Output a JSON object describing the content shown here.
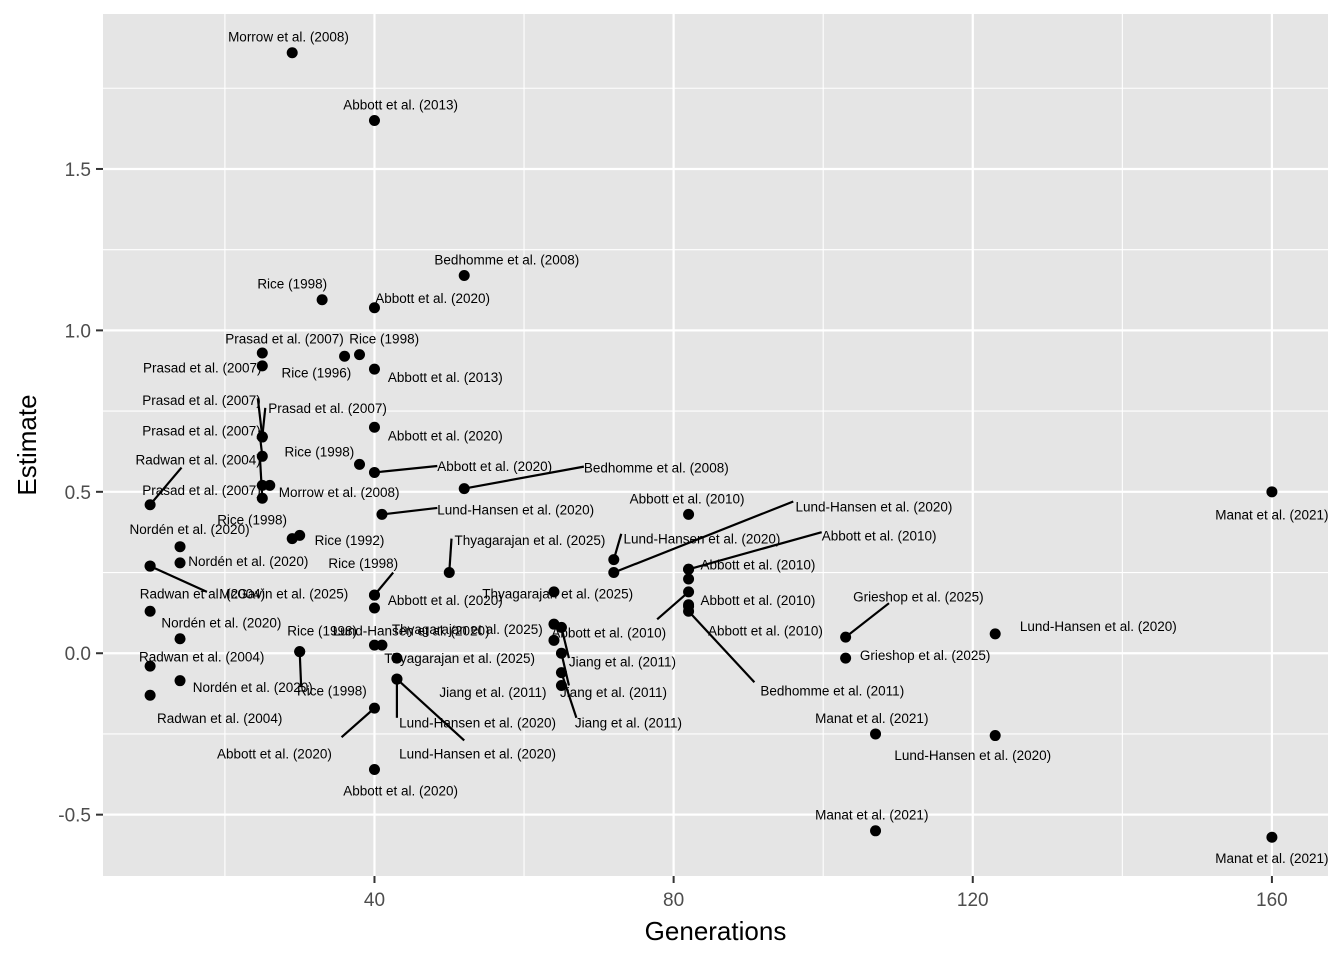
{
  "chart_data": {
    "type": "scatter",
    "title": "",
    "xlabel": "Generations",
    "ylabel": "Estimate",
    "xlim": [
      3.7,
      167.5
    ],
    "ylim": [
      -0.69,
      1.98
    ],
    "x_ticks": [
      40,
      80,
      120,
      160
    ],
    "x_tick_labels": [
      "40",
      "80",
      "120",
      "160"
    ],
    "y_ticks": [
      -0.5,
      0.0,
      0.5,
      1.0,
      1.5
    ],
    "y_tick_labels": [
      "-0.5",
      "0.0",
      "0.5",
      "1.0",
      "1.5"
    ],
    "colors": {
      "panel": "#e5e5e5",
      "grid": "#ffffff",
      "point": "#000000",
      "tick_text": "#4d4d4d"
    },
    "points": [
      {
        "x": 29,
        "y": 1.86,
        "label": "Morrow et al. (2008)",
        "lx": 28.5,
        "ly": 1.91,
        "anchor": "middle",
        "line": false
      },
      {
        "x": 40,
        "y": 1.65,
        "label": "Abbott et al. (2013)",
        "lx": 43.5,
        "ly": 1.7,
        "anchor": "middle",
        "line": false
      },
      {
        "x": 52,
        "y": 1.17,
        "label": "Bedhomme et al. (2008)",
        "lx": 57.7,
        "ly": 1.22,
        "anchor": "middle",
        "line": false
      },
      {
        "x": 33,
        "y": 1.095,
        "label": "Rice (1998)",
        "lx": 29.0,
        "ly": 1.145,
        "anchor": "middle",
        "line": false
      },
      {
        "x": 40,
        "y": 1.07,
        "label": "Abbott et al. (2020)",
        "lx": 40.1,
        "ly": 1.1,
        "anchor": "start",
        "line": false
      },
      {
        "x": 25,
        "y": 0.93,
        "label": "Prasad et al. (2007)",
        "lx": 35.9,
        "ly": 0.975,
        "anchor": "end",
        "line": false
      },
      {
        "x": 36,
        "y": 0.92,
        "label": "Rice (1996)",
        "lx": 36.9,
        "ly": 0.87,
        "anchor": "end",
        "line": false
      },
      {
        "x": 38,
        "y": 0.925,
        "label": "Rice (1998)",
        "lx": 41.3,
        "ly": 0.975,
        "anchor": "middle",
        "line": false
      },
      {
        "x": 40,
        "y": 0.88,
        "label": "Abbott et al. (2013)",
        "lx": 41.8,
        "ly": 0.855,
        "anchor": "start",
        "line": false
      },
      {
        "x": 25,
        "y": 0.89,
        "label": "Prasad et al. (2007)",
        "lx": 24.9,
        "ly": 0.885,
        "anchor": "end",
        "line": false
      },
      {
        "x": 25,
        "y": 0.67,
        "label": "Prasad et al. (2007)",
        "lx": 24.8,
        "ly": 0.785,
        "anchor": "end",
        "line": true,
        "ex": 24.4,
        "ey": 0.79
      },
      {
        "x": 25,
        "y": 0.67,
        "label": "Prasad et al. (2007)",
        "lx": 25.8,
        "ly": 0.76,
        "anchor": "start",
        "line": true,
        "ex": 25.4,
        "ey": 0.76
      },
      {
        "x": 25,
        "y": 0.61,
        "label": "Prasad et al. (2007)",
        "lx": 24.8,
        "ly": 0.69,
        "anchor": "end",
        "line": true,
        "ex": 24.6,
        "ey": 0.69
      },
      {
        "x": 40,
        "y": 0.7,
        "label": "Abbott et al. (2020)",
        "lx": 41.8,
        "ly": 0.675,
        "anchor": "start",
        "line": false
      },
      {
        "x": 38,
        "y": 0.585,
        "label": "Rice (1998)",
        "lx": 37.3,
        "ly": 0.625,
        "anchor": "end",
        "line": false
      },
      {
        "x": 40,
        "y": 0.56,
        "label": "Abbott et al. (2020)",
        "lx": 48.4,
        "ly": 0.58,
        "anchor": "start",
        "line": true,
        "ex": 48.4,
        "ey": 0.58
      },
      {
        "x": 52,
        "y": 0.51,
        "label": "Bedhomme et al. (2008)",
        "lx": 68.0,
        "ly": 0.575,
        "anchor": "start",
        "line": true,
        "ex": 68.0,
        "ey": 0.578
      },
      {
        "x": 26,
        "y": 0.52,
        "label": "Morrow et al. (2008)",
        "lx": 27.2,
        "ly": 0.5,
        "anchor": "start",
        "line": false
      },
      {
        "x": 25,
        "y": 0.52,
        "label": "Prasad et al. (2007)",
        "lx": 24.8,
        "ly": 0.505,
        "anchor": "end",
        "line": false
      },
      {
        "x": 25,
        "y": 0.48,
        "label": "Radwan et al. (2004)",
        "lx": 24.8,
        "ly": 0.6,
        "anchor": "end",
        "line": true,
        "ex": 24.7,
        "ey": 0.6
      },
      {
        "x": 10,
        "y": 0.46,
        "label": "Radwan et al. (2004)",
        "lx": 24.8,
        "ly": 0.6,
        "anchor": "none",
        "line": true,
        "ex": 14.2,
        "ey": 0.575
      },
      {
        "x": 41,
        "y": 0.43,
        "label": "Lund-Hansen et al. (2020)",
        "lx": 48.4,
        "ly": 0.445,
        "anchor": "start",
        "line": true,
        "ex": 48.4,
        "ey": 0.45
      },
      {
        "x": 82,
        "y": 0.43,
        "label": "Abbott et al. (2010)",
        "lx": 81.8,
        "ly": 0.48,
        "anchor": "middle",
        "line": false
      },
      {
        "x": 160,
        "y": 0.5,
        "label": "Manat et al. (2021)",
        "lx": 160.0,
        "ly": 0.43,
        "anchor": "middle",
        "line": false
      },
      {
        "x": 30,
        "y": 0.365,
        "label": "Rice (1992)",
        "lx": 32.0,
        "ly": 0.35,
        "anchor": "start",
        "line": false
      },
      {
        "x": 29,
        "y": 0.355,
        "label": "Rice (1998)",
        "lx": 28.3,
        "ly": 0.415,
        "anchor": "end",
        "line": false
      },
      {
        "x": 14,
        "y": 0.33,
        "label": "Nordén et al. (2020)",
        "lx": 23.3,
        "ly": 0.385,
        "anchor": "end",
        "line": false
      },
      {
        "x": 14,
        "y": 0.28,
        "label": "Nordén et al. (2020)",
        "lx": 15.1,
        "ly": 0.285,
        "anchor": "start",
        "line": false
      },
      {
        "x": 10,
        "y": 0.27,
        "label": "Radwan et al. (2004)",
        "lx": 17.0,
        "ly": 0.185,
        "anchor": "middle",
        "line": true,
        "ex": 17.6,
        "ey": 0.19
      },
      {
        "x": 10,
        "y": 0.27,
        "label": "McGavin et al. (2025)",
        "lx": 36.5,
        "ly": 0.185,
        "anchor": "end",
        "line": false
      },
      {
        "x": 50,
        "y": 0.25,
        "label": "Thyagarajan et al. (2025)",
        "lx": 50.7,
        "ly": 0.35,
        "anchor": "start",
        "line": true,
        "ex": 50.3,
        "ey": 0.355
      },
      {
        "x": 72,
        "y": 0.29,
        "label": "Lund-Hansen et al. (2020)",
        "lx": 73.3,
        "ly": 0.355,
        "anchor": "start",
        "line": true,
        "ex": 73.0,
        "ey": 0.37
      },
      {
        "x": 72,
        "y": 0.25,
        "label": "Lund-Hansen et al. (2020)",
        "lx": 96.3,
        "ly": 0.455,
        "anchor": "start",
        "line": true,
        "ex": 96.0,
        "ey": 0.47
      },
      {
        "x": 82,
        "y": 0.26,
        "label": "Abbott et al. (2010)",
        "lx": 99.8,
        "ly": 0.365,
        "anchor": "start",
        "line": true,
        "ex": 99.8,
        "ey": 0.375
      },
      {
        "x": 82,
        "y": 0.26,
        "label": "Abbott et al. (2010)",
        "lx": 83.6,
        "ly": 0.275,
        "anchor": "start",
        "line": false
      },
      {
        "x": 82,
        "y": 0.23,
        "label": "Abbott et al. (2010)",
        "lx": 83.6,
        "ly": 0.165,
        "anchor": "start",
        "line": false
      },
      {
        "x": 82,
        "y": 0.19,
        "label": "Abbott et al. (2010)",
        "lx": 79.0,
        "ly": 0.065,
        "anchor": "end",
        "line": true,
        "ex": 77.8,
        "ey": 0.105
      },
      {
        "x": 82,
        "y": 0.15,
        "label": "Abbott et al. (2010)",
        "lx": 84.6,
        "ly": 0.07,
        "anchor": "start",
        "line": false
      },
      {
        "x": 82,
        "y": 0.13,
        "label": "Bedhomme et al. (2011)",
        "lx": 91.6,
        "ly": -0.115,
        "anchor": "start",
        "line": true,
        "ex": 90.8,
        "ey": -0.09
      },
      {
        "x": 82,
        "y": 0.145,
        "label": "Abbott et al. (2010)",
        "lx": 82,
        "ly": 0.145,
        "anchor": "none",
        "line": false
      },
      {
        "x": 40,
        "y": 0.18,
        "label": "Rice (1998)",
        "lx": 38.5,
        "ly": 0.28,
        "anchor": "middle",
        "line": true,
        "ex": 42.5,
        "ey": 0.25
      },
      {
        "x": 40,
        "y": 0.18,
        "label": "Abbott et al. (2020)",
        "lx": 41.8,
        "ly": 0.165,
        "anchor": "start",
        "line": false
      },
      {
        "x": 40,
        "y": 0.14,
        "label": "McGavin et al. (2025)",
        "lx": 40,
        "ly": 0.14,
        "anchor": "none",
        "line": false
      },
      {
        "x": 64,
        "y": 0.19,
        "label": "Thyagarajan et al. (2025)",
        "lx": 64.5,
        "ly": 0.185,
        "anchor": "middle",
        "line": false
      },
      {
        "x": 103,
        "y": 0.05,
        "label": "Grieshop et al. (2025)",
        "lx": 104.0,
        "ly": 0.175,
        "anchor": "start",
        "line": true,
        "ex": 108.8,
        "ey": 0.155
      },
      {
        "x": 103,
        "y": -0.015,
        "label": "Grieshop et al. (2025)",
        "lx": 104.9,
        "ly": -0.005,
        "anchor": "start",
        "line": false
      },
      {
        "x": 123,
        "y": 0.06,
        "label": "Lund-Hansen et al. (2020)",
        "lx": 126.3,
        "ly": 0.085,
        "anchor": "start",
        "line": false
      },
      {
        "x": 10,
        "y": 0.13,
        "label": "Nordén et al. (2020)",
        "lx": 11.5,
        "ly": 0.095,
        "anchor": "start",
        "line": false
      },
      {
        "x": 14,
        "y": 0.045,
        "label": "Radwan et al. (2004)",
        "lx": 16.9,
        "ly": -0.01,
        "anchor": "middle",
        "line": false
      },
      {
        "x": 10,
        "y": -0.04,
        "label": "Radwan et al. (2004)",
        "lx": 10,
        "ly": -0.04,
        "anchor": "none",
        "line": false
      },
      {
        "x": 14,
        "y": -0.085,
        "label": "Nordén et al. (2020)",
        "lx": 15.7,
        "ly": -0.105,
        "anchor": "start",
        "line": false
      },
      {
        "x": 10,
        "y": -0.13,
        "label": "Radwan et al. (2004)",
        "lx": 19.3,
        "ly": -0.2,
        "anchor": "middle",
        "line": false
      },
      {
        "x": 30,
        "y": 0.005,
        "label": "Rice (1998)",
        "lx": 34.3,
        "ly": -0.115,
        "anchor": "middle",
        "line": true,
        "ex": 30.2,
        "ey": -0.105
      },
      {
        "x": 30,
        "y": 0.005,
        "label": "Rice (1998)",
        "lx": 33.0,
        "ly": 0.07,
        "anchor": "middle",
        "line": false
      },
      {
        "x": 40,
        "y": 0.025,
        "label": "Lund-Hansen et al. (2020)",
        "lx": 44.9,
        "ly": 0.07,
        "anchor": "middle",
        "line": false
      },
      {
        "x": 41,
        "y": 0.025,
        "label": "Lund-Hansen et al. (2020)",
        "lx": 41,
        "ly": 0.025,
        "anchor": "none",
        "line": false
      },
      {
        "x": 43,
        "y": -0.015,
        "label": "Thyagarajan et al. (2025)",
        "lx": 41.3,
        "ly": -0.015,
        "anchor": "start",
        "line": false
      },
      {
        "x": 64,
        "y": 0.09,
        "label": "Thyagarajan et al. (2025)",
        "lx": 62.5,
        "ly": 0.075,
        "anchor": "end",
        "line": false
      },
      {
        "x": 65,
        "y": 0.08,
        "label": "Jiang et al. (2011)",
        "lx": 66.0,
        "ly": -0.025,
        "anchor": "start",
        "line": true,
        "ex": 66.0,
        "ey": -0.015
      },
      {
        "x": 64,
        "y": 0.04,
        "label": "Jiang et al. (2011)",
        "lx": 63.0,
        "ly": -0.12,
        "anchor": "end",
        "line": false
      },
      {
        "x": 65,
        "y": 0.0,
        "label": "Jiang et al. (2011)",
        "lx": 64.8,
        "ly": -0.12,
        "anchor": "start",
        "line": true,
        "ex": 66.0,
        "ey": -0.1
      },
      {
        "x": 65,
        "y": -0.06,
        "label": "Jiang et al. (2011)",
        "lx": 66.8,
        "ly": -0.215,
        "anchor": "start",
        "line": true,
        "ex": 67.0,
        "ey": -0.2
      },
      {
        "x": 65,
        "y": -0.1,
        "label": "Jiang et al. (2011)",
        "lx": 65,
        "ly": -0.1,
        "anchor": "none",
        "line": false
      },
      {
        "x": 43,
        "y": -0.08,
        "label": "Lund-Hansen et al. (2020)",
        "lx": 43.3,
        "ly": -0.215,
        "anchor": "start",
        "line": true,
        "ex": 43.0,
        "ey": -0.2
      },
      {
        "x": 43,
        "y": -0.08,
        "label": "Lund-Hansen et al. (2020)",
        "lx": 43.3,
        "ly": -0.31,
        "anchor": "start",
        "line": true,
        "ex": 52.0,
        "ey": -0.27
      },
      {
        "x": 40,
        "y": -0.17,
        "label": "Abbott et al. (2020)",
        "lx": 34.3,
        "ly": -0.31,
        "anchor": "end",
        "line": true,
        "ex": 35.6,
        "ey": -0.26
      },
      {
        "x": 40,
        "y": -0.36,
        "label": "Abbott et al. (2020)",
        "lx": 43.5,
        "ly": -0.425,
        "anchor": "middle",
        "line": false
      },
      {
        "x": 107,
        "y": -0.25,
        "label": "Manat et al. (2021)",
        "lx": 106.5,
        "ly": -0.2,
        "anchor": "middle",
        "line": false
      },
      {
        "x": 123,
        "y": -0.255,
        "label": "Lund-Hansen et al. (2020)",
        "lx": 120.0,
        "ly": -0.315,
        "anchor": "middle",
        "line": false
      },
      {
        "x": 107,
        "y": -0.55,
        "label": "Manat et al. (2021)",
        "lx": 106.5,
        "ly": -0.5,
        "anchor": "middle",
        "line": false
      },
      {
        "x": 160,
        "y": -0.57,
        "label": "Manat et al. (2021)",
        "lx": 160.0,
        "ly": -0.635,
        "anchor": "middle",
        "line": false
      }
    ]
  }
}
